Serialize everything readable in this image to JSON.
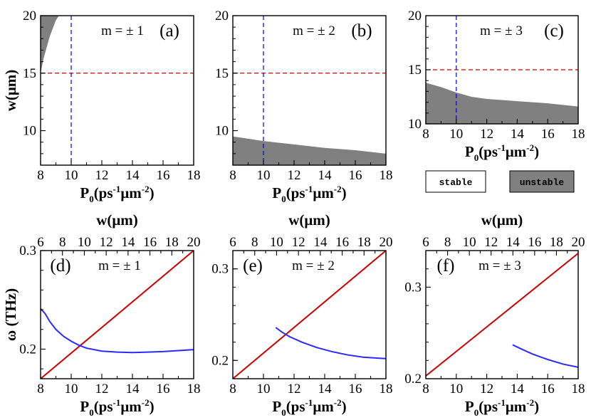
{
  "colors": {
    "unstable_fill": "#808080",
    "guide": "#0000cc",
    "threshold": "#cc0000",
    "curve": "#2a2aff",
    "line": "#cc0000",
    "frame": "#000000"
  },
  "legend": {
    "stable": "stable",
    "unstable": "unstable"
  },
  "axis_text": {
    "p0_main": "P",
    "p0_sub": "0",
    "p0_units": "(ps",
    "p0_exp1": "-1",
    "p0_mid": "μm",
    "p0_exp2": "-2",
    "p0_close": ")",
    "w_label": "w(μm)",
    "omega_label": "ω (THz)"
  },
  "chart_data": [
    {
      "type": "area",
      "panel": "a",
      "label": "(a)",
      "annotation": "m = ± 1",
      "xlim": [
        8,
        18
      ],
      "ylim": [
        7,
        20
      ],
      "xticks": [
        8,
        10,
        12,
        14,
        16,
        18
      ],
      "yticks": [
        10,
        15,
        20
      ],
      "xlabel": "P0(ps-1μm-2)",
      "ylabel": "w(μm)",
      "hline": 15,
      "vline": 10,
      "unstable_region": {
        "boundary_x": [
          8.0,
          8.2,
          8.6,
          9.0,
          9.2
        ],
        "boundary_y": [
          15.0,
          16.3,
          18.2,
          19.6,
          20.0
        ],
        "side": "upper-left"
      }
    },
    {
      "type": "area",
      "panel": "b",
      "label": "(b)",
      "annotation": "m = ± 2",
      "xlim": [
        8,
        18
      ],
      "ylim": [
        7,
        20
      ],
      "xticks": [
        8,
        10,
        12,
        14,
        16,
        18
      ],
      "yticks": [
        10,
        15,
        20
      ],
      "xlabel": "P0(ps-1μm-2)",
      "ylabel": "",
      "hline": 15,
      "vline": 10,
      "unstable_region": {
        "boundary_x": [
          8,
          10,
          12,
          14,
          16,
          18
        ],
        "boundary_y": [
          9.5,
          9.1,
          8.8,
          8.5,
          8.3,
          8.0
        ],
        "side": "below"
      }
    },
    {
      "type": "area",
      "panel": "c",
      "label": "(c)",
      "annotation": "m = ± 3",
      "xlim": [
        8,
        18
      ],
      "ylim": [
        10,
        20
      ],
      "xticks": [
        8,
        10,
        12,
        14,
        16,
        18
      ],
      "yticks": [
        10,
        15,
        20
      ],
      "xlabel": "P0(ps-1μm-2)",
      "ylabel": "",
      "hline": 15,
      "vline": 10,
      "unstable_region": {
        "boundary_x": [
          8,
          9,
          10,
          11,
          12,
          13,
          14,
          15,
          16,
          17,
          18
        ],
        "boundary_y": [
          13.8,
          13.4,
          12.9,
          12.5,
          12.3,
          12.2,
          12.1,
          12.0,
          11.9,
          11.75,
          11.6
        ],
        "side": "below"
      }
    },
    {
      "type": "line",
      "panel": "d",
      "label": "(d)",
      "annotation": "m = ± 1",
      "xlim": [
        8,
        18
      ],
      "ylim": [
        0.17,
        0.3
      ],
      "xticks": [
        8,
        10,
        12,
        14,
        16,
        18
      ],
      "yticks": [
        0.2,
        0.3
      ],
      "ytick_labels": [
        "0.2",
        "0.3"
      ],
      "x2lim": [
        6,
        20
      ],
      "x2ticks": [
        6,
        8,
        10,
        12,
        14,
        16,
        18,
        20
      ],
      "xlabel": "P0(ps-1μm-2)",
      "ylabel": "ω (THz)",
      "x2label": "w(μm)",
      "series": [
        {
          "color": "line",
          "x": [
            8,
            18
          ],
          "y": [
            0.17,
            0.3
          ]
        },
        {
          "color": "curve",
          "x": [
            8.0,
            8.3,
            8.6,
            9.0,
            9.5,
            10.0,
            10.5,
            11.0,
            12.0,
            13.0,
            14.0,
            15.0,
            16.0,
            17.0,
            18.0
          ],
          "y": [
            0.241,
            0.236,
            0.228,
            0.22,
            0.213,
            0.208,
            0.204,
            0.201,
            0.198,
            0.197,
            0.1965,
            0.197,
            0.1975,
            0.1985,
            0.1995
          ]
        }
      ]
    },
    {
      "type": "line",
      "panel": "e",
      "label": "(e)",
      "annotation": "m = ± 2",
      "xlim": [
        8,
        18
      ],
      "ylim": [
        0.18,
        0.32
      ],
      "xticks": [
        8,
        10,
        12,
        14,
        16,
        18
      ],
      "yticks": [
        0.2,
        0.3
      ],
      "ytick_labels": [
        "0.2",
        "0.3"
      ],
      "x2lim": [
        6,
        20
      ],
      "x2ticks": [
        6,
        8,
        10,
        12,
        14,
        16,
        18,
        20
      ],
      "xlabel": "P0(ps-1μm-2)",
      "ylabel": "",
      "x2label": "w(μm)",
      "series": [
        {
          "color": "line",
          "x": [
            8,
            18
          ],
          "y": [
            0.18,
            0.32
          ]
        },
        {
          "color": "curve",
          "x": [
            10.8,
            11.2,
            11.7,
            12.5,
            13.5,
            14.5,
            15.5,
            16.5,
            17.5,
            18.0
          ],
          "y": [
            0.236,
            0.231,
            0.226,
            0.22,
            0.214,
            0.2095,
            0.206,
            0.2035,
            0.2025,
            0.202
          ]
        }
      ]
    },
    {
      "type": "line",
      "panel": "f",
      "label": "(f)",
      "annotation": "m = ± 3",
      "xlim": [
        8,
        18
      ],
      "ylim": [
        0.2,
        0.34
      ],
      "xticks": [
        8,
        10,
        12,
        14,
        16,
        18
      ],
      "yticks": [
        0.2,
        0.3
      ],
      "ytick_labels": [
        "0.2",
        "0.3"
      ],
      "x2lim": [
        6,
        20
      ],
      "x2ticks": [
        6,
        8,
        10,
        12,
        14,
        16,
        18,
        20
      ],
      "xlabel": "P0(ps-1μm-2)",
      "ylabel": "",
      "x2label": "w(μm)",
      "series": [
        {
          "color": "line",
          "x": [
            8,
            18
          ],
          "y": [
            0.203,
            0.337
          ]
        },
        {
          "color": "curve",
          "x": [
            13.7,
            14.2,
            15.0,
            16.0,
            17.0,
            18.0
          ],
          "y": [
            0.237,
            0.233,
            0.227,
            0.221,
            0.216,
            0.2125
          ]
        }
      ]
    }
  ]
}
